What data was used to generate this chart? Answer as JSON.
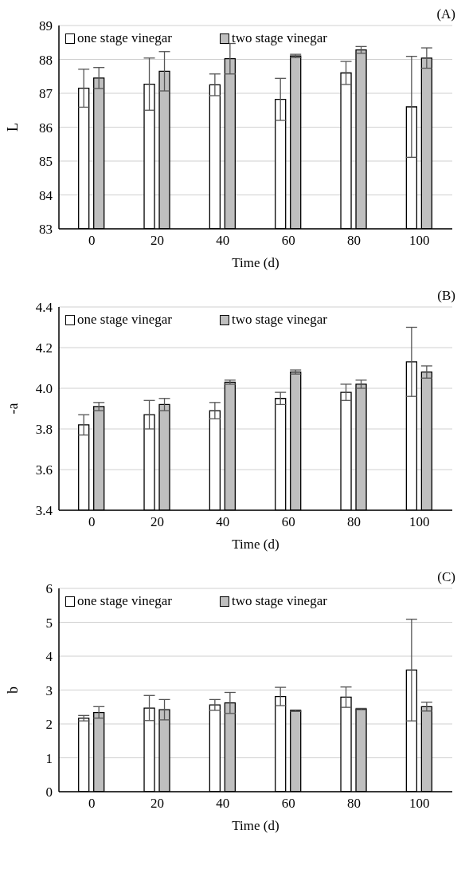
{
  "chart_data": [
    {
      "type": "bar",
      "title": "(A)",
      "xlabel": "Time (d)",
      "ylabel": "L",
      "categories": [
        "0",
        "20",
        "40",
        "60",
        "80",
        "100"
      ],
      "series": [
        {
          "name": "one stage vinegar",
          "color": "#ffffff",
          "values": [
            87.15,
            87.27,
            87.25,
            86.82,
            87.6,
            86.6
          ],
          "errors": [
            0.56,
            0.77,
            0.32,
            0.62,
            0.34,
            1.49
          ]
        },
        {
          "name": "two stage vinegar",
          "color": "#bfbfbf",
          "values": [
            87.45,
            87.65,
            88.02,
            88.1,
            88.28,
            88.04
          ],
          "errors": [
            0.31,
            0.58,
            0.45,
            0.05,
            0.1,
            0.3
          ]
        }
      ],
      "ylim": [
        83,
        89
      ],
      "yticks": [
        83,
        84,
        85,
        86,
        87,
        88,
        89
      ],
      "grid": "y",
      "legend": "top left"
    },
    {
      "type": "bar",
      "title": "(B)",
      "xlabel": "Time (d)",
      "ylabel": "-a",
      "categories": [
        "0",
        "20",
        "40",
        "60",
        "80",
        "100"
      ],
      "series": [
        {
          "name": "one stage vinegar",
          "color": "#ffffff",
          "values": [
            3.82,
            3.87,
            3.89,
            3.95,
            3.98,
            4.13
          ],
          "errors": [
            0.05,
            0.07,
            0.04,
            0.03,
            0.04,
            0.17
          ]
        },
        {
          "name": "two stage vinegar",
          "color": "#bfbfbf",
          "values": [
            3.91,
            3.92,
            4.03,
            4.08,
            4.02,
            4.08
          ],
          "errors": [
            0.02,
            0.03,
            0.01,
            0.01,
            0.02,
            0.03
          ]
        }
      ],
      "ylim": [
        3.4,
        4.4
      ],
      "yticks": [
        3.4,
        3.6,
        3.8,
        {
          "value": 4,
          "label": "4.0"
        },
        4.2,
        4.4
      ],
      "grid": "y",
      "legend": "top left"
    },
    {
      "type": "bar",
      "title": "(C)",
      "xlabel": "Time (d)",
      "ylabel": "b",
      "categories": [
        "0",
        "20",
        "40",
        "60",
        "80",
        "100"
      ],
      "series": [
        {
          "name": "one stage vinegar",
          "color": "#ffffff",
          "values": [
            2.17,
            2.47,
            2.56,
            2.81,
            2.79,
            3.59
          ],
          "errors": [
            0.08,
            0.37,
            0.16,
            0.27,
            0.3,
            1.5
          ]
        },
        {
          "name": "two stage vinegar",
          "color": "#bfbfbf",
          "values": [
            2.34,
            2.42,
            2.62,
            2.39,
            2.44,
            2.51
          ],
          "errors": [
            0.17,
            0.3,
            0.31,
            0.02,
            0.02,
            0.13
          ]
        }
      ],
      "ylim": [
        0,
        6
      ],
      "yticks": [
        0,
        1,
        2,
        3,
        4,
        5,
        6
      ],
      "grid": "y",
      "legend": "top left"
    }
  ]
}
